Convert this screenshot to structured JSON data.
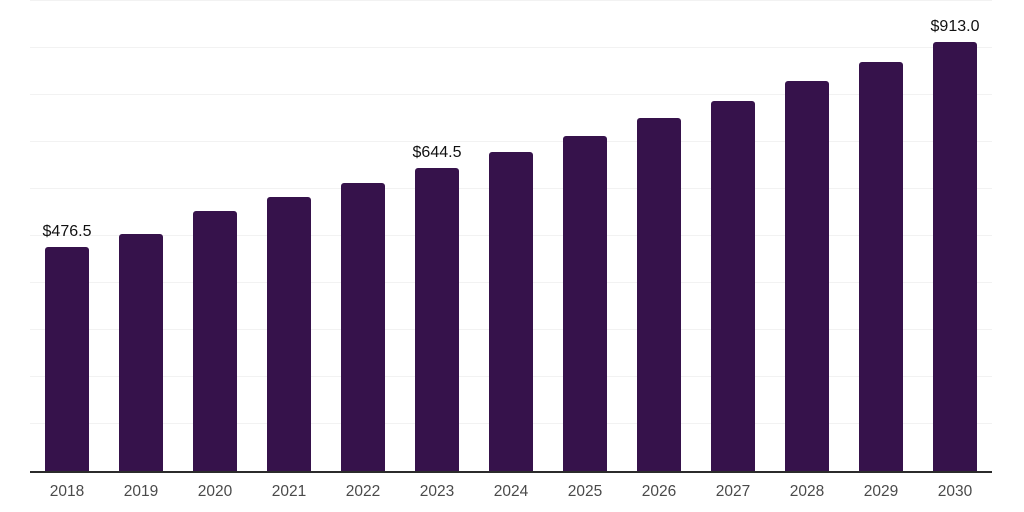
{
  "chart_data": {
    "type": "bar",
    "title": "",
    "xlabel": "",
    "ylabel": "",
    "categories": [
      "2018",
      "2019",
      "2020",
      "2021",
      "2022",
      "2023",
      "2024",
      "2025",
      "2026",
      "2027",
      "2028",
      "2029",
      "2030"
    ],
    "values": [
      476.5,
      504,
      553,
      583,
      613,
      644.5,
      679,
      712,
      751,
      787,
      829,
      870,
      913.0
    ],
    "value_labels_shown": [
      {
        "index": 0,
        "text": "$476.5"
      },
      {
        "index": 5,
        "text": "$644.5"
      },
      {
        "index": 12,
        "text": "$913.0"
      }
    ],
    "value_prefix": "$",
    "ylim": [
      0,
      1000
    ],
    "gridline_step": 100,
    "grid": "horizontal-faint",
    "legend": "none"
  },
  "style": {
    "bar_color": "#36124B",
    "gridline_color": "#f2f2f2",
    "axis_line_color": "#2b2b2b",
    "tick_label_color": "#4a4a4a",
    "value_label_color": "#111111",
    "background_color": "#ffffff"
  }
}
